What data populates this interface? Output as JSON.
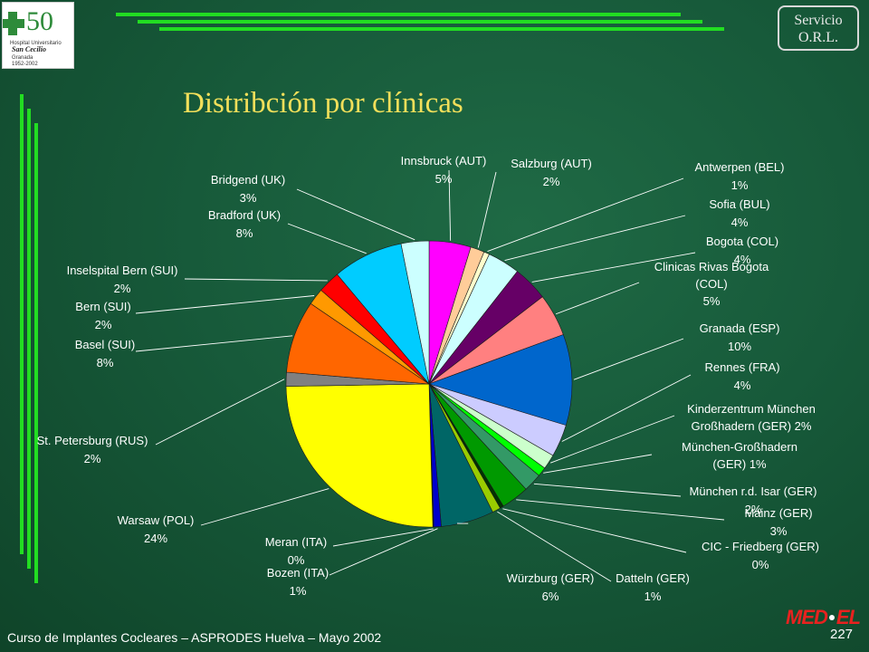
{
  "header": {
    "logo_text_1": "Hospital Universitario",
    "logo_text_2": "San Cecilio",
    "logo_text_3": "Granada",
    "logo_text_4": "1952-2002",
    "logo_number": "50",
    "service_line_1": "Servicio",
    "service_line_2": "O.R.L."
  },
  "chart_data": {
    "type": "pie",
    "title": "Distribción por clínicas",
    "slices": [
      {
        "label": "Innsbruck (AUT)",
        "percent_label": "5%",
        "value": 4.5,
        "color": "#ff00ff"
      },
      {
        "label": "Salzburg (AUT)",
        "percent_label": "2%",
        "value": 1.5,
        "color": "#ffcc99"
      },
      {
        "label": "Antwerpen (BEL)",
        "percent_label": "1%",
        "value": 0.6,
        "color": "#ffffcc"
      },
      {
        "label": "Sofia (BUL)",
        "percent_label": "4%",
        "value": 3.5,
        "color": "#ccffff"
      },
      {
        "label": "Bogota (COL)",
        "percent_label": "4%",
        "value": 3.8,
        "color": "#660066"
      },
      {
        "label": "Clinicas Rivas Bogota (COL)",
        "percent_label": "5%",
        "value": 4.6,
        "color": "#ff8080"
      },
      {
        "label": "Granada (ESP)",
        "percent_label": "10%",
        "value": 9.8,
        "color": "#0066cc"
      },
      {
        "label": "Rennes (FRA)",
        "percent_label": "4%",
        "value": 3.5,
        "color": "#ccccff"
      },
      {
        "label": "Kinderzentrum München Großhadern (GER)",
        "percent_label": "2%",
        "value": 1.6,
        "color": "#ccffcc"
      },
      {
        "label": "München-Großhadern (GER)",
        "percent_label": "1%",
        "value": 1.0,
        "color": "#00ff00"
      },
      {
        "label": "München r.d. Isar (GER)",
        "percent_label": "2%",
        "value": 2.0,
        "color": "#339966"
      },
      {
        "label": "Mainz (GER)",
        "percent_label": "3%",
        "value": 3.0,
        "color": "#009900"
      },
      {
        "label": "CIC - Friedberg (GER)",
        "percent_label": "0%",
        "value": 0.4,
        "color": "#003300"
      },
      {
        "label": "Datteln (GER)",
        "percent_label": "1%",
        "value": 0.9,
        "color": "#99cc00"
      },
      {
        "label": "Würzburg (GER)",
        "percent_label": "6%",
        "value": 5.7,
        "color": "#006666"
      },
      {
        "label": "Bozen (ITA)",
        "percent_label": "1%",
        "value": 0.8,
        "color": "#0000cc"
      },
      {
        "label": "Meran (ITA)",
        "percent_label": "0%",
        "value": 0.1,
        "color": "#000066"
      },
      {
        "label": "Warsaw (POL)",
        "percent_label": "24%",
        "value": 24.0,
        "color": "#ffff00"
      },
      {
        "label": "St. Petersburg (RUS)",
        "percent_label": "2%",
        "value": 1.5,
        "color": "#808080"
      },
      {
        "label": "Basel (SUI)",
        "percent_label": "8%",
        "value": 7.8,
        "color": "#ff6600"
      },
      {
        "label": "Bern (SUI)",
        "percent_label": "2%",
        "value": 1.8,
        "color": "#ff9900"
      },
      {
        "label": "Inselspital Bern (SUI)",
        "percent_label": "2%",
        "value": 2.4,
        "color": "#ff0000"
      },
      {
        "label": "Bradford (UK)",
        "percent_label": "8%",
        "value": 7.6,
        "color": "#00ccff"
      },
      {
        "label": "Bridgend (UK)",
        "percent_label": "3%",
        "value": 3.0,
        "color": "#ccffff"
      }
    ]
  },
  "footer": {
    "course_text": "Curso de Implantes Cocleares – ASPRODES Huelva – Mayo 2002",
    "page_number": "227",
    "brand_left": "MED",
    "brand_right": "EL"
  }
}
